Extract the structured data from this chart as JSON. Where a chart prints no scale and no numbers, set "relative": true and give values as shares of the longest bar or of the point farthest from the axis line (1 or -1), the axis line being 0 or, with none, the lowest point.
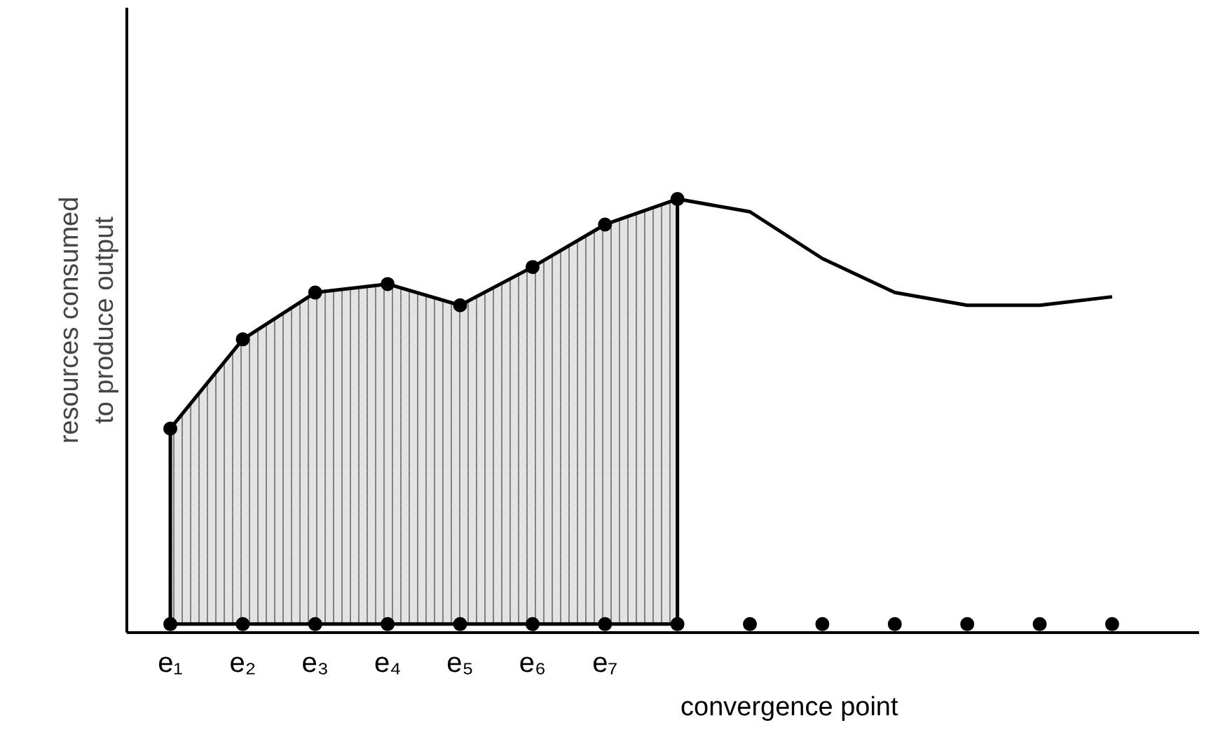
{
  "chart_data": {
    "type": "area",
    "relative": true,
    "ylabel": "resources consumed\nto produce output",
    "categories": [
      "e₁",
      "e₂",
      "e₃",
      "e₄",
      "e₅",
      "e₆",
      "e₇",
      null,
      null,
      null,
      null,
      null,
      null,
      null
    ],
    "series": [
      {
        "color": "#000000",
        "marker": "circle",
        "values": [
          0.46,
          0.67,
          0.78,
          0.8,
          0.75,
          0.84,
          0.94,
          1.0,
          null,
          null,
          null,
          null,
          null,
          null
        ]
      },
      {
        "type": "line",
        "color": "#000000",
        "marker": "none",
        "values": [
          null,
          null,
          null,
          null,
          null,
          null,
          null,
          1.0,
          0.97,
          0.86,
          0.78,
          0.75,
          0.75,
          0.77
        ]
      },
      {
        "type": "scatter",
        "color": "#000000",
        "marker": "circle",
        "values": [
          0,
          0,
          0,
          0,
          0,
          0,
          0,
          0,
          0,
          0,
          0,
          0,
          0,
          0
        ]
      }
    ],
    "annotations": [
      "convergence point"
    ],
    "grid": false
  }
}
